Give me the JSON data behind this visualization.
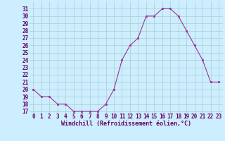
{
  "x": [
    0,
    1,
    2,
    3,
    4,
    5,
    6,
    7,
    8,
    9,
    10,
    11,
    12,
    13,
    14,
    15,
    16,
    17,
    18,
    19,
    20,
    21,
    22,
    23
  ],
  "y": [
    20,
    19,
    19,
    18,
    18,
    17,
    17,
    17,
    17,
    18,
    20,
    24,
    26,
    27,
    30,
    30,
    31,
    31,
    30,
    28,
    26,
    24,
    21,
    21
  ],
  "line_color": "#993399",
  "marker_color": "#993399",
  "bg_color": "#cceeff",
  "grid_color": "#aacccc",
  "xlabel": "Windchill (Refroidissement éolien,°C)",
  "ylim_min": 17,
  "ylim_max": 32,
  "xlim_min": -0.5,
  "xlim_max": 23.5,
  "yticks": [
    17,
    18,
    19,
    20,
    21,
    22,
    23,
    24,
    25,
    26,
    27,
    28,
    29,
    30,
    31
  ],
  "xticks": [
    0,
    1,
    2,
    3,
    4,
    5,
    6,
    7,
    8,
    9,
    10,
    11,
    12,
    13,
    14,
    15,
    16,
    17,
    18,
    19,
    20,
    21,
    22,
    23
  ],
  "xlabel_fontsize": 6.0,
  "tick_fontsize": 5.5,
  "label_color": "#660066",
  "linewidth": 0.8,
  "markersize": 2.0
}
